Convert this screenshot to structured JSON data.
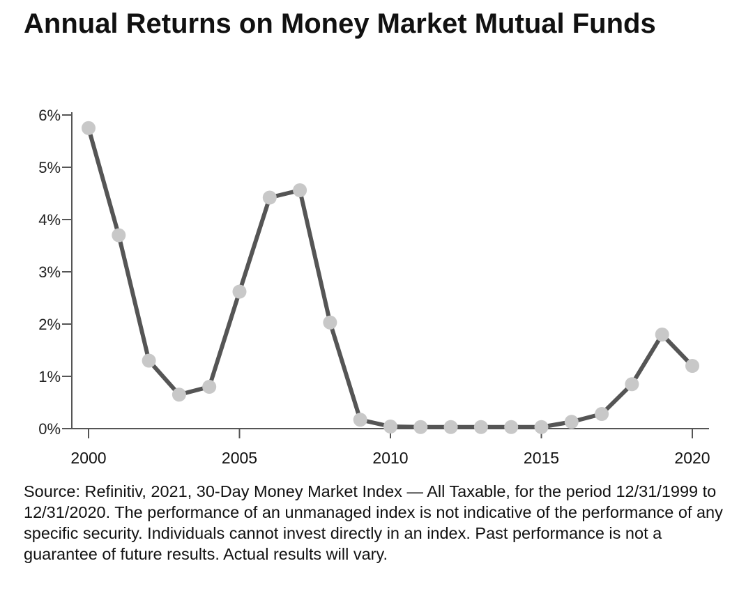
{
  "title": "Annual Returns on Money Market Mutual Funds",
  "source_note": "Source: Refinitiv, 2021, 30-Day Money Market Index — All Taxable, for the period 12/31/1999 to 12/31/2020. The performance of an unmanaged index is not indicative of the performance of any specific security. Individuals cannot invest directly in an index. Past performance is not a guarantee of future results. Actual results will vary.",
  "colors": {
    "line": "#555555",
    "marker": "#c8c8c8",
    "axis": "#555555",
    "text": "#111111"
  },
  "chart_data": {
    "type": "line",
    "title": "Annual Returns on Money Market Mutual Funds",
    "xlabel": "",
    "ylabel": "",
    "x": [
      2000,
      2001,
      2002,
      2003,
      2004,
      2005,
      2006,
      2007,
      2008,
      2009,
      2010,
      2011,
      2012,
      2013,
      2014,
      2015,
      2016,
      2017,
      2018,
      2019,
      2020
    ],
    "values": [
      5.75,
      3.7,
      1.3,
      0.65,
      0.8,
      2.62,
      4.42,
      4.56,
      2.03,
      0.17,
      0.04,
      0.03,
      0.03,
      0.03,
      0.03,
      0.03,
      0.13,
      0.28,
      0.85,
      1.8,
      1.2
    ],
    "xlim": [
      2000,
      2020
    ],
    "ylim": [
      0,
      6
    ],
    "x_ticks": [
      2000,
      2005,
      2010,
      2015,
      2020
    ],
    "x_tick_labels": [
      "2000",
      "2005",
      "2010",
      "2015",
      "2020"
    ],
    "y_ticks": [
      0,
      1,
      2,
      3,
      4,
      5,
      6
    ],
    "y_tick_labels": [
      "0%",
      "1%",
      "2%",
      "3%",
      "4%",
      "5%",
      "6%"
    ],
    "grid": false,
    "legend": "none",
    "markers": true
  }
}
